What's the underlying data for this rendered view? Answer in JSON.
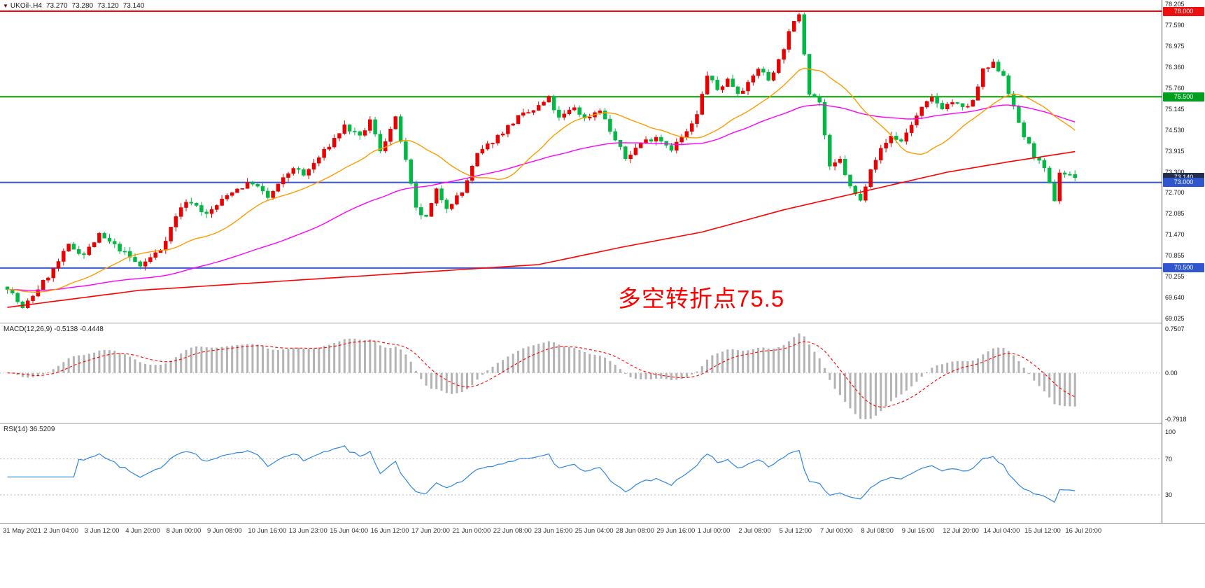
{
  "header": {
    "symbol": "UKOil-.H4",
    "open": "73.270",
    "high": "73.280",
    "low": "73.120",
    "close": "73.140"
  },
  "annotation": {
    "text": "多空转折点75.5",
    "color": "#ff0000"
  },
  "macd_panel": {
    "label": "MACD(12,26,9) -0.5138 -0.4448",
    "axis": [
      {
        "text": "0.7507",
        "value": 0.7507
      },
      {
        "text": "0.00",
        "value": 0
      },
      {
        "text": "-0.7918",
        "value": -0.7918
      }
    ]
  },
  "rsi_panel": {
    "label": "RSI(14) 36.5209",
    "axis": [
      {
        "text": "100",
        "value": 100
      },
      {
        "text": "70",
        "value": 70
      },
      {
        "text": "30",
        "value": 30
      }
    ],
    "levels": [
      70,
      30
    ]
  },
  "price_axis": {
    "labels": [
      "78.205",
      "77.590",
      "76.975",
      "76.360",
      "75.760",
      "75.145",
      "74.530",
      "73.915",
      "73.300",
      "72.700",
      "72.085",
      "71.470",
      "70.855",
      "70.255",
      "69.640",
      "69.025"
    ],
    "badges": [
      {
        "text": "78.000",
        "price": 78.0,
        "bg": "#ee0f0f"
      },
      {
        "text": "75.500",
        "price": 75.5,
        "bg": "#00a01e"
      },
      {
        "text": "73.140",
        "price": 73.14,
        "bg": "#222e4c"
      },
      {
        "text": "73.000",
        "price": 73.0,
        "bg": "#2f55cf"
      },
      {
        "text": "70.500",
        "price": 70.5,
        "bg": "#2f55cf"
      }
    ]
  },
  "time_axis": {
    "labels": [
      "31 May 2021",
      "2 Jun 04:00",
      "3 Jun 12:00",
      "4 Jun 20:00",
      "8 Jun 00:00",
      "9 Jun 08:00",
      "10 Jun 16:00",
      "13 Jun 23:00",
      "15 Jun 04:00",
      "16 Jun 12:00",
      "17 Jun 20:00",
      "21 Jun 00:00",
      "22 Jun 08:00",
      "23 Jun 16:00",
      "25 Jun 04:00",
      "28 Jun 08:00",
      "29 Jun 16:00",
      "1 Jul 00:00",
      "2 Jul 08:00",
      "5 Jul 12:00",
      "7 Jul 00:00",
      "8 Jul 08:00",
      "9 Jul 16:00",
      "12 Jul 20:00",
      "14 Jul 04:00",
      "15 Jul 12:00",
      "16 Jul 20:00"
    ]
  },
  "chart_data": {
    "type": "candlestick",
    "symbol": "UKOil-.H4",
    "timeframe": "H4",
    "last_price": 73.14,
    "price_range": [
      69.025,
      78.205
    ],
    "candles_count": 210,
    "bars_per_time_label": 8,
    "price_path": [
      [
        0,
        69.95
      ],
      [
        3,
        69.3
      ],
      [
        6,
        69.9
      ],
      [
        9,
        70.45
      ],
      [
        12,
        71.15
      ],
      [
        15,
        70.9
      ],
      [
        18,
        71.45
      ],
      [
        22,
        71.05
      ],
      [
        26,
        70.55
      ],
      [
        30,
        71.05
      ],
      [
        34,
        72.3
      ],
      [
        36,
        72.45
      ],
      [
        39,
        72.05
      ],
      [
        44,
        72.75
      ],
      [
        48,
        73.0
      ],
      [
        51,
        72.55
      ],
      [
        56,
        73.45
      ],
      [
        58,
        73.2
      ],
      [
        62,
        73.9
      ],
      [
        66,
        74.65
      ],
      [
        69,
        74.3
      ],
      [
        71,
        74.8
      ],
      [
        73,
        73.95
      ],
      [
        76,
        74.85
      ],
      [
        78,
        73.6
      ],
      [
        80,
        72.2
      ],
      [
        82,
        71.95
      ],
      [
        84,
        72.75
      ],
      [
        86,
        72.3
      ],
      [
        89,
        72.7
      ],
      [
        92,
        73.8
      ],
      [
        96,
        74.35
      ],
      [
        100,
        74.9
      ],
      [
        103,
        75.1
      ],
      [
        106,
        75.45
      ],
      [
        108,
        74.85
      ],
      [
        111,
        75.2
      ],
      [
        113,
        74.85
      ],
      [
        116,
        75.15
      ],
      [
        118,
        74.5
      ],
      [
        121,
        73.7
      ],
      [
        124,
        74.15
      ],
      [
        127,
        74.35
      ],
      [
        130,
        74.0
      ],
      [
        133,
        74.45
      ],
      [
        135,
        74.95
      ],
      [
        137,
        76.15
      ],
      [
        139,
        75.7
      ],
      [
        141,
        76.0
      ],
      [
        143,
        75.65
      ],
      [
        145,
        75.85
      ],
      [
        147,
        76.35
      ],
      [
        149,
        76.0
      ],
      [
        151,
        76.55
      ],
      [
        153,
        77.35
      ],
      [
        155,
        77.95
      ],
      [
        157,
        75.65
      ],
      [
        159,
        75.35
      ],
      [
        161,
        73.4
      ],
      [
        163,
        73.65
      ],
      [
        165,
        72.85
      ],
      [
        167,
        72.45
      ],
      [
        169,
        73.45
      ],
      [
        171,
        73.95
      ],
      [
        173,
        74.35
      ],
      [
        175,
        74.2
      ],
      [
        177,
        74.7
      ],
      [
        179,
        75.15
      ],
      [
        181,
        75.45
      ],
      [
        183,
        75.2
      ],
      [
        185,
        75.35
      ],
      [
        187,
        75.15
      ],
      [
        189,
        75.35
      ],
      [
        191,
        76.25
      ],
      [
        193,
        76.45
      ],
      [
        195,
        76.15
      ],
      [
        197,
        75.15
      ],
      [
        199,
        74.35
      ],
      [
        201,
        73.8
      ],
      [
        203,
        73.35
      ],
      [
        205,
        72.5
      ],
      [
        206,
        73.3
      ],
      [
        208,
        73.2
      ],
      [
        209,
        73.14
      ]
    ],
    "hlines": [
      {
        "price": 78.0,
        "color": "#fe0000",
        "w": 2
      },
      {
        "price": 75.5,
        "color": "#00a000",
        "w": 2
      },
      {
        "price": 73.0,
        "color": "#3a57d0",
        "w": 2
      },
      {
        "price": 70.5,
        "color": "#3a57d0",
        "w": 2
      }
    ],
    "moving_averages": {
      "fast_period": 20,
      "mid_period": 60,
      "slow_path": [
        [
          0,
          69.35
        ],
        [
          26,
          69.85
        ],
        [
          52,
          70.1
        ],
        [
          78,
          70.35
        ],
        [
          104,
          70.6
        ],
        [
          120,
          71.1
        ],
        [
          136,
          71.55
        ],
        [
          152,
          72.2
        ],
        [
          168,
          72.75
        ],
        [
          184,
          73.3
        ],
        [
          196,
          73.6
        ],
        [
          209,
          73.9
        ]
      ]
    },
    "macd": {
      "fast": 12,
      "slow": 26,
      "signal": 9,
      "range": [
        -0.7918,
        0.7507
      ],
      "last_main": -0.5138,
      "last_signal": -0.4448
    },
    "rsi": {
      "period": 14,
      "range": [
        0,
        100
      ],
      "levels": [
        70,
        30
      ],
      "last": 36.5209
    },
    "colors": {
      "up": "#e90000",
      "down": "#00b843",
      "ma_fast": "#ff9b00",
      "ma_mid": "#ff00ff",
      "ma_slow": "#ff0000",
      "macd_hist": "#b3b3b3",
      "macd_signal": "#ff0000",
      "rsi_line": "#2e86e0",
      "level_dotted": "#b5b5b5"
    }
  }
}
